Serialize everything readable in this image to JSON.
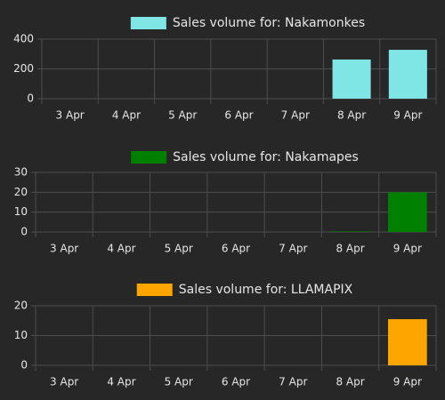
{
  "chart_data": [
    {
      "type": "bar",
      "categories": [
        "3 Apr",
        "4 Apr",
        "5 Apr",
        "6 Apr",
        "7 Apr",
        "8 Apr",
        "9 Apr"
      ],
      "series": [
        {
          "name": "Sales volume for: Nakamonkes",
          "color": "#80e5e5",
          "values": [
            0,
            0,
            0,
            0,
            0,
            263,
            328
          ]
        }
      ],
      "ylim": [
        0,
        400
      ],
      "yticks": [
        0,
        200,
        400
      ],
      "grid": true
    },
    {
      "type": "bar",
      "categories": [
        "3 Apr",
        "4 Apr",
        "5 Apr",
        "6 Apr",
        "7 Apr",
        "8 Apr",
        "9 Apr"
      ],
      "series": [
        {
          "name": "Sales volume for: Nakamapes",
          "color": "#008000",
          "values": [
            0,
            0,
            0,
            0,
            0,
            0.3,
            20
          ]
        }
      ],
      "ylim": [
        0,
        30
      ],
      "yticks": [
        0,
        10,
        20,
        30
      ],
      "grid": true
    },
    {
      "type": "bar",
      "categories": [
        "3 Apr",
        "4 Apr",
        "5 Apr",
        "6 Apr",
        "7 Apr",
        "8 Apr",
        "9 Apr"
      ],
      "series": [
        {
          "name": "Sales volume for: LLAMAPIX",
          "color": "#ffa500",
          "values": [
            0,
            0,
            0,
            0,
            0,
            0,
            15.5
          ]
        }
      ],
      "ylim": [
        0,
        20
      ],
      "yticks": [
        0,
        10,
        20
      ],
      "grid": true
    }
  ]
}
